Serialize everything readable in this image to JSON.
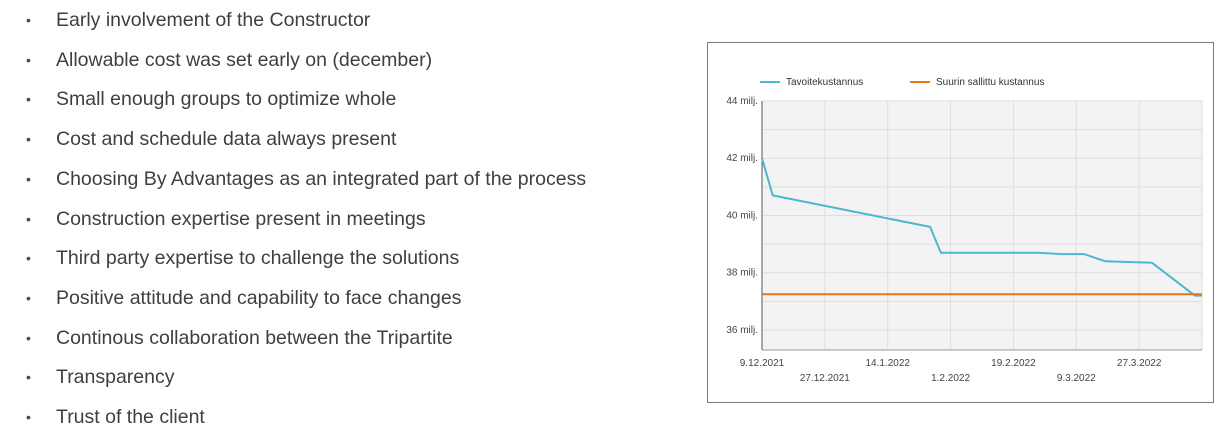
{
  "bullets": [
    "Early involvement of the Constructor",
    "Allowable cost was set early on (december)",
    "Small enough groups to optimize whole",
    "Cost and schedule data always present",
    "Choosing By Advantages as an integrated part of the process",
    "Construction expertise present in meetings",
    "Third party expertise to challenge the solutions",
    "Positive attitude and capability to face changes",
    "Continous collaboration between the Tripartite",
    "Transparency",
    "Trust of the client"
  ],
  "bullet_symbol": "•",
  "chart_data": {
    "type": "line",
    "x_tick_labels": [
      "9.12.2021",
      "27.12.2021",
      "14.1.2022",
      "1.2.2022",
      "19.2.2022",
      "9.3.2022",
      "27.3.2022"
    ],
    "x_tick_label_rows": [
      "upper",
      "lower",
      "upper",
      "lower",
      "upper",
      "lower",
      "upper"
    ],
    "y_tick_labels": [
      "44 milj.",
      "42 milj.",
      "40 milj.",
      "38 milj.",
      "36 milj."
    ],
    "y_tick_values": [
      44,
      42,
      40,
      38,
      36
    ],
    "ylim": [
      35.3,
      44
    ],
    "x_start": "2021-12-09",
    "x_end": "2022-04-11",
    "grid": true,
    "legend_position": "top",
    "series": [
      {
        "name": "Tavoitekustannus",
        "color": "#4ab8cf",
        "points": [
          {
            "x": "2021-12-09",
            "y": 42.0
          },
          {
            "x": "2021-12-12",
            "y": 40.7
          },
          {
            "x": "2022-01-25",
            "y": 39.6
          },
          {
            "x": "2022-01-28",
            "y": 38.7
          },
          {
            "x": "2022-02-24",
            "y": 38.7
          },
          {
            "x": "2022-03-03",
            "y": 38.65
          },
          {
            "x": "2022-03-09",
            "y": 38.65
          },
          {
            "x": "2022-03-15",
            "y": 38.4
          },
          {
            "x": "2022-03-28",
            "y": 38.35
          },
          {
            "x": "2022-04-09",
            "y": 37.2
          },
          {
            "x": "2022-04-11",
            "y": 37.2
          }
        ]
      },
      {
        "name": "Suurin sallittu kustannus",
        "color": "#e8771b",
        "points": [
          {
            "x": "2021-12-09",
            "y": 37.25
          },
          {
            "x": "2022-04-11",
            "y": 37.25
          }
        ]
      }
    ]
  }
}
